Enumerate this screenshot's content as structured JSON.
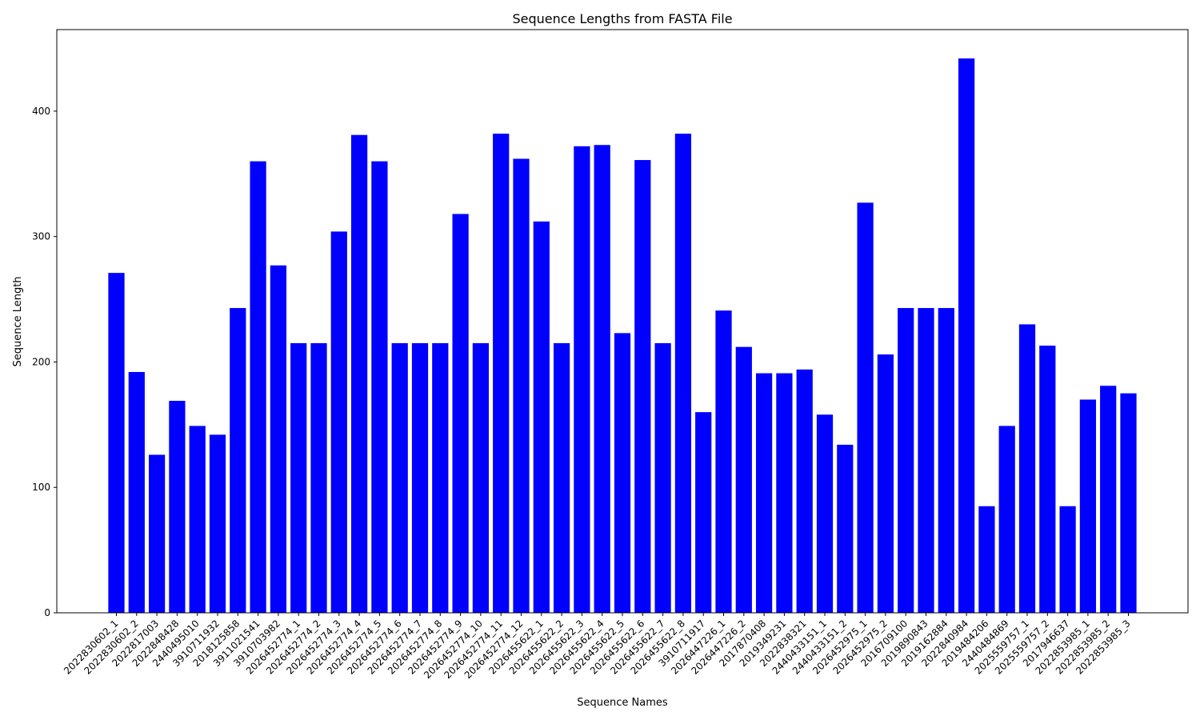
{
  "chart_data": {
    "type": "bar",
    "title": "Sequence Lengths from FASTA File",
    "xlabel": "Sequence Names",
    "ylabel": "Sequence Length",
    "ylim": [
      0,
      465
    ],
    "yticks": [
      0,
      100,
      200,
      300,
      400
    ],
    "bar_color": "#0000ff",
    "grid": false,
    "categories": [
      "2022830602_1",
      "2022830602_2",
      "2022817003",
      "2022848428",
      "2440495010",
      "3910711932",
      "2018125858",
      "3911021541",
      "3910703982",
      "2026452774_1",
      "2026452774_2",
      "2026452774_3",
      "2026452774_4",
      "2026452774_5",
      "2026452774_6",
      "2026452774_7",
      "2026452774_8",
      "2026452774_9",
      "2026452774_10",
      "2026452774_11",
      "2026452774_12",
      "2026455622_1",
      "2026455622_2",
      "2026455622_3",
      "2026455622_4",
      "2026455622_5",
      "2026455622_6",
      "2026455622_7",
      "2026455622_8",
      "3910711917",
      "2026447226_1",
      "2026447226_2",
      "2017870408",
      "2019349231",
      "2022838321",
      "2440433151_1",
      "2440433151_2",
      "2026452975_1",
      "2026452975_2",
      "2016709100",
      "2019890843",
      "2019162884",
      "2022840984",
      "2019484206",
      "2440484869",
      "2025559757_1",
      "2025559757_2",
      "2017946637",
      "2022853985_1",
      "2022853985_2",
      "2022853985_3"
    ],
    "values": [
      271,
      192,
      126,
      169,
      149,
      142,
      243,
      360,
      277,
      215,
      215,
      304,
      381,
      360,
      215,
      215,
      215,
      318,
      215,
      382,
      362,
      312,
      215,
      372,
      373,
      223,
      361,
      215,
      382,
      160,
      241,
      212,
      191,
      191,
      194,
      158,
      134,
      327,
      206,
      243,
      243,
      243,
      442,
      85,
      149,
      230,
      213,
      85,
      170,
      181,
      175
    ]
  }
}
